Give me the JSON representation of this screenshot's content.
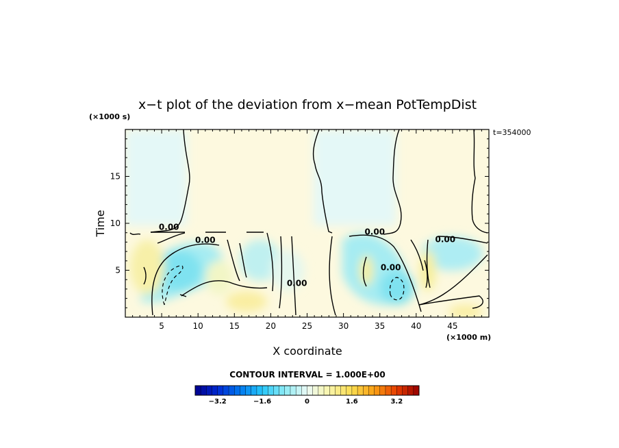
{
  "chart_data": {
    "type": "heatmap",
    "title": "x−t plot of the deviation from x−mean PotTempDist",
    "xlabel": "X coordinate",
    "ylabel": "Time",
    "x_units": "(×1000 m)",
    "y_units": "(×1000 s)",
    "time_label": "t=354000",
    "xlim": [
      0,
      50
    ],
    "ylim": [
      0,
      20
    ],
    "x_ticks": [
      5,
      10,
      15,
      20,
      25,
      30,
      35,
      40,
      45
    ],
    "y_ticks": [
      5,
      10,
      15
    ],
    "contour_interval_label": "CONTOUR INTERVAL = 1.000E+00",
    "contour_labels": [
      {
        "text": "0.00",
        "x": 6.0,
        "y": 9.6
      },
      {
        "text": "0.00",
        "x": 11.0,
        "y": 8.2
      },
      {
        "text": "0.00",
        "x": 23.6,
        "y": 3.6
      },
      {
        "text": "0.00",
        "x": 34.3,
        "y": 9.1
      },
      {
        "text": "0.00",
        "x": 36.5,
        "y": 5.3
      },
      {
        "text": "0.00",
        "x": 44.0,
        "y": 8.3
      }
    ],
    "colorbar": {
      "min": -4.0,
      "max": 4.0,
      "step": 0.2,
      "ticks": [
        "−3.2",
        "−1.6",
        "0",
        "1.6",
        "3.2"
      ],
      "tick_values": [
        -3.2,
        -1.6,
        0,
        1.6,
        3.2
      ]
    },
    "field_description": [
      {
        "region": "upper band t>9.5, x 0-8.5",
        "value": -0.3
      },
      {
        "region": "upper band t>9.5, x 8.5-26",
        "value": 0.3
      },
      {
        "region": "upper band t>9.5, x 26-37",
        "value": -0.3
      },
      {
        "region": "upper band t>9.5, x 37-50",
        "value": 0.3
      },
      {
        "region": "cold core near x=7, t=4",
        "value": -1.5
      },
      {
        "region": "cold core near x=37, t=3",
        "value": -1.4
      },
      {
        "region": "warm band near x=2, t=5",
        "value": 0.8
      },
      {
        "region": "warm band near x=42, t=5",
        "value": 0.8
      }
    ]
  }
}
